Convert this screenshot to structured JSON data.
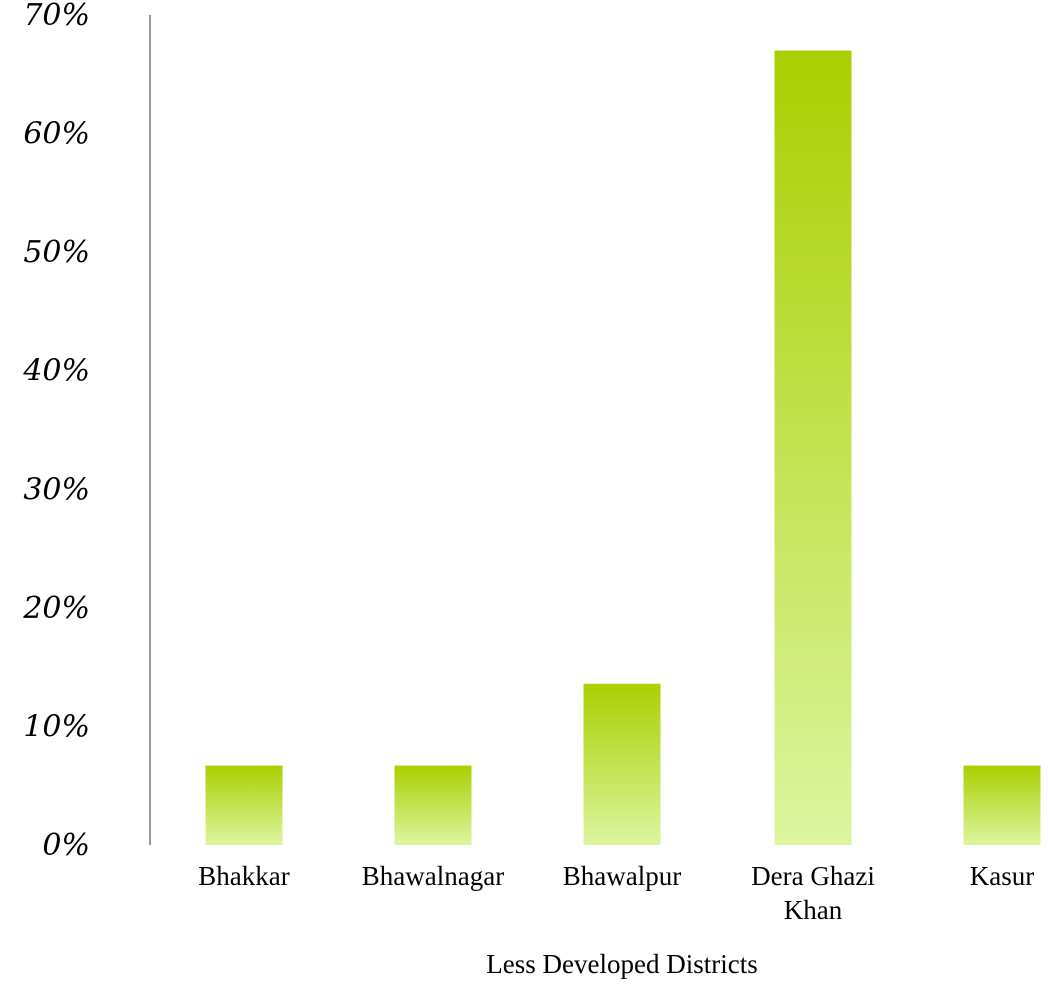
{
  "chart_data": {
    "type": "bar",
    "title": "",
    "xlabel": "Less Developed Districts",
    "ylabel": "",
    "categories": [
      [
        "Bhakkar"
      ],
      [
        "Bhawalnagar"
      ],
      [
        "Bhawalpur"
      ],
      [
        "Dera Ghazi",
        "Khan"
      ],
      [
        "Kasur"
      ]
    ],
    "values": [
      6.7,
      6.7,
      13.6,
      67.0,
      6.7
    ],
    "ylim": [
      0,
      70
    ],
    "yticks": [
      "0%",
      "10%",
      "20%",
      "30%",
      "40%",
      "50%",
      "60%",
      "70%"
    ],
    "grid": false,
    "legend": "none",
    "colors": {
      "bar_top": "#aacf00",
      "bar_bottom": "#dcf5a0",
      "axis": "#999999"
    }
  }
}
